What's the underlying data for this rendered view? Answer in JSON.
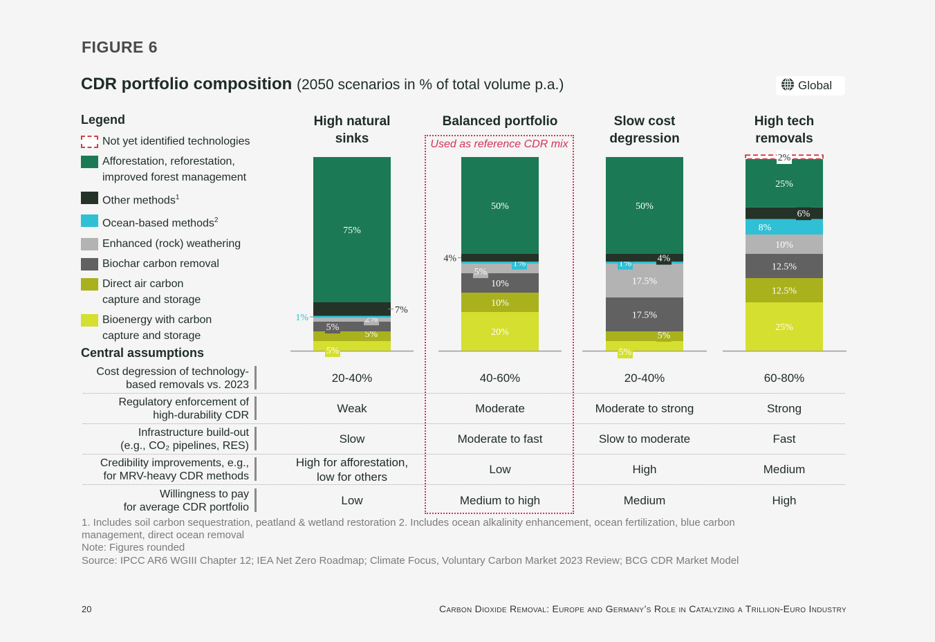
{
  "figure_label": "FIGURE 6",
  "title": "CDR portfolio composition",
  "subtitle": "(2050 scenarios in % of total volume p.a.)",
  "region": {
    "icon": "globe-icon",
    "label": "Global"
  },
  "legend": {
    "title": "Legend",
    "items": [
      {
        "key": "nyi",
        "line1": "Not yet identified technologies",
        "line2": "",
        "sup": "",
        "color": "#ffffff"
      },
      {
        "key": "arr",
        "line1": "Afforestation, reforestation,",
        "line2": "improved forest management",
        "sup": "",
        "color": "#1b7a55"
      },
      {
        "key": "other",
        "line1": "Other methods",
        "line2": "",
        "sup": "1",
        "color": "#253228"
      },
      {
        "key": "ocean",
        "line1": "Ocean-based methods",
        "line2": "",
        "sup": "2",
        "color": "#2fc0d6"
      },
      {
        "key": "erw",
        "line1": "Enhanced (rock) weathering",
        "line2": "",
        "sup": "",
        "color": "#b3b3b3"
      },
      {
        "key": "biochar",
        "line1": "Biochar carbon removal",
        "line2": "",
        "sup": "",
        "color": "#616161"
      },
      {
        "key": "daccs",
        "line1": "Direct air carbon",
        "line2": "capture and storage",
        "sup": "",
        "color": "#a9b11d"
      },
      {
        "key": "beccs",
        "line1": "Bioenergy with carbon",
        "line2": "capture and storage",
        "sup": "",
        "color": "#d5df2f"
      }
    ]
  },
  "reference_label": "Used as reference CDR mix",
  "chart_data": {
    "type": "bar",
    "stacked": true,
    "title": "CDR portfolio composition",
    "subtitle": "(2050 scenarios in % of total volume p.a.)",
    "categories": [
      "High natural sinks",
      "Balanced portfolio",
      "Slow cost degression",
      "High tech removals"
    ],
    "category_lines": [
      [
        "High natural",
        "sinks"
      ],
      [
        "Balanced portfolio"
      ],
      [
        "Slow cost",
        "degression"
      ],
      [
        "High tech",
        "removals"
      ]
    ],
    "ylim": [
      0,
      100
    ],
    "unit": "%",
    "series": [
      {
        "name": "Bioenergy with carbon capture and storage",
        "key": "beccs",
        "color": "#d5df2f",
        "values": [
          5,
          20,
          5,
          25
        ],
        "labels": [
          "5%",
          "20%",
          "5%",
          "25%"
        ]
      },
      {
        "name": "Direct air carbon capture and storage",
        "key": "daccs",
        "color": "#a9b11d",
        "values": [
          5,
          10,
          5,
          12.5
        ],
        "labels": [
          "5%",
          "10%",
          "5%",
          "12.5%"
        ]
      },
      {
        "name": "Biochar carbon removal",
        "key": "biochar",
        "color": "#616161",
        "values": [
          5,
          10,
          17.5,
          12.5
        ],
        "labels": [
          "5%",
          "10%",
          "17.5%",
          "12.5%"
        ]
      },
      {
        "name": "Enhanced (rock) weathering",
        "key": "erw",
        "color": "#b3b3b3",
        "values": [
          2,
          5,
          17.5,
          10
        ],
        "labels": [
          "2%",
          "5%",
          "17.5%",
          "10%"
        ]
      },
      {
        "name": "Ocean-based methods",
        "key": "ocean",
        "color": "#2fc0d6",
        "values": [
          1,
          1,
          1,
          8
        ],
        "labels": [
          "1%",
          "1%",
          "1%",
          "8%"
        ]
      },
      {
        "name": "Other methods",
        "key": "other",
        "color": "#253228",
        "values": [
          7,
          4,
          4,
          6
        ],
        "labels": [
          "7%",
          "4%",
          "4%",
          "6%"
        ]
      },
      {
        "name": "Afforestation, reforestation, improved forest management",
        "key": "arr",
        "color": "#1b7a55",
        "values": [
          75,
          50,
          50,
          25
        ],
        "labels": [
          "75%",
          "50%",
          "50%",
          "25%"
        ]
      },
      {
        "name": "Not yet identified technologies",
        "key": "nyi",
        "color": "#ffffff",
        "values": [
          0,
          0,
          0,
          2
        ],
        "labels": [
          "",
          "",
          "",
          "2%"
        ]
      }
    ],
    "reference_category": "Balanced portfolio"
  },
  "assumptions": {
    "title": "Central assumptions",
    "rows": [
      {
        "label": [
          "Cost degression of technology-",
          "based removals vs. 2023"
        ],
        "values": [
          [
            "20-40%"
          ],
          [
            "40-60%"
          ],
          [
            "20-40%"
          ],
          [
            "60-80%"
          ]
        ]
      },
      {
        "label": [
          "Regulatory enforcement of",
          "high-durability CDR"
        ],
        "values": [
          [
            "Weak"
          ],
          [
            "Moderate"
          ],
          [
            "Moderate to strong"
          ],
          [
            "Strong"
          ]
        ]
      },
      {
        "label": [
          "Infrastructure build-out",
          "(e.g., CO₂ pipelines, RES)"
        ],
        "values": [
          [
            "Slow"
          ],
          [
            "Moderate to fast"
          ],
          [
            "Slow to moderate"
          ],
          [
            "Fast"
          ]
        ]
      },
      {
        "label": [
          "Credibility improvements, e.g.,",
          "for MRV-heavy CDR methods"
        ],
        "values": [
          [
            "High for afforestation,",
            "low for others"
          ],
          [
            "Low"
          ],
          [
            "High"
          ],
          [
            "Medium"
          ]
        ]
      },
      {
        "label": [
          "Willingness to pay",
          "for average CDR portfolio"
        ],
        "values": [
          [
            "Low"
          ],
          [
            "Medium to high"
          ],
          [
            "Medium"
          ],
          [
            "High"
          ]
        ]
      }
    ]
  },
  "footnotes": {
    "line1": "1. Includes soil carbon sequestration, peatland & wetland restoration  2. Includes ocean alkalinity enhancement, ocean fertilization, blue carbon",
    "line2": "management, direct ocean removal",
    "note": "Note: Figures rounded",
    "source": "Source: IPCC AR6 WGIII Chapter 12; IEA Net Zero Roadmap; Climate Focus, Voluntary Carbon Market 2023 Review; BCG CDR Market Model"
  },
  "page_number": "20",
  "running_title": "Carbon Dioxide Removal: Europe and Germany’s Role in Catalyzing a Trillion-Euro Industry"
}
